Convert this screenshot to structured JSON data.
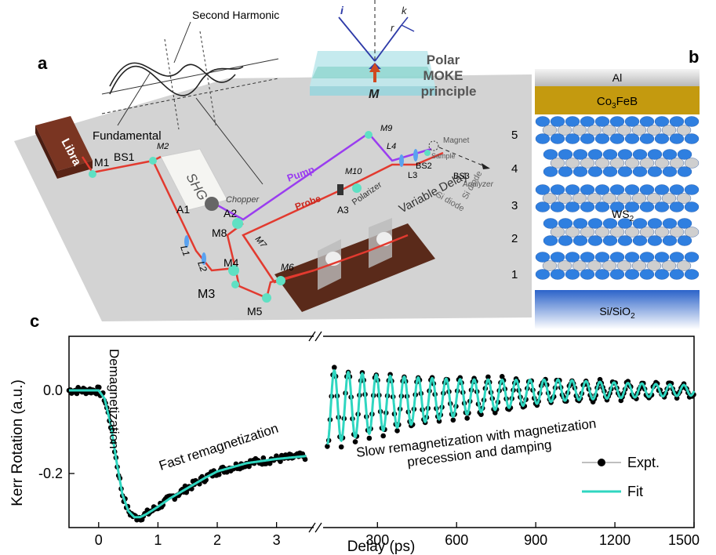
{
  "panels": {
    "a": "a",
    "b": "b",
    "c": "c"
  },
  "setup": {
    "libra": "Libra",
    "shg": "SHG",
    "chopper": "Chopper",
    "fundamental": "Fundamental",
    "second_harmonic": "Second Harmonic",
    "pump": "Pump",
    "probe": "Probe",
    "variable_delay": "Variable Delay",
    "polarizer": "Polarizer",
    "analyzer": "Analyzer",
    "magnet": "Magnet",
    "sample": "Sample",
    "si_diode_1": "Si diode",
    "si_diode_2": "Si diode",
    "optics": {
      "M1": "M1",
      "BS1": "BS1",
      "M2": "M2",
      "A1": "A1",
      "L1": "L1",
      "L2": "L2",
      "M3": "M3",
      "M4": "M4",
      "M5": "M5",
      "M6": "M6",
      "M7": "M7",
      "M8": "M8",
      "A2": "A2",
      "A3": "A3",
      "M9": "M9",
      "M10": "M10",
      "L3": "L3",
      "L4": "L4",
      "BS2": "BS2",
      "BS3": "BS3"
    },
    "moke": {
      "title_line1": "Polar",
      "title_line2": "MOKE",
      "title_line3": "principle",
      "i": "i",
      "r": "r",
      "k": "k",
      "M": "M"
    }
  },
  "stack": {
    "al": "Al",
    "cofeb": "Co3FeB",
    "ws2": "WS2",
    "substrate": "Si/SiO2",
    "layer_numbers": [
      "5",
      "4",
      "3",
      "2",
      "1"
    ],
    "colors": {
      "al": "#c9c9c9",
      "cofeb": "#c49a0f",
      "substrate": "#3a6fcc",
      "tungsten": "#2f7fe0",
      "sulfur": "#cfcfcf"
    }
  },
  "chart_data": {
    "type": "line",
    "xlabel": "Delay (ps)",
    "ylabel": "Kerr Rotation (a.u.)",
    "ylim": [
      -0.33,
      0.13
    ],
    "yticks": [
      0.0,
      -0.2
    ],
    "yticklabels": [
      "0.0",
      "-0.2"
    ],
    "left_segment": {
      "xlim": [
        -0.5,
        3.6
      ],
      "xticks": [
        0,
        1,
        2,
        3
      ],
      "xticklabels": [
        "0",
        "1",
        "2",
        "3"
      ]
    },
    "right_segment": {
      "xlim": [
        100,
        1500
      ],
      "xticks": [
        300,
        600,
        900,
        1200,
        1500
      ],
      "xticklabels": [
        "300",
        "600",
        "900",
        "1200",
        "1500"
      ]
    },
    "legend": {
      "placement": "bottom-right",
      "entries": [
        "Expt.",
        "Fit"
      ]
    },
    "annotations": {
      "demag": "Demagnetization",
      "fast": "Fast remagnetization",
      "slow_line1": "Slow remagnetization with magnetization",
      "slow_line2": "precession and damping"
    },
    "series": [
      {
        "name": "Expt.",
        "color": "#000000",
        "style": "points"
      },
      {
        "name": "Fit",
        "color": "#2fd6c0",
        "style": "line"
      }
    ],
    "fast_fit": {
      "x": [
        -0.5,
        0.0,
        0.1,
        0.2,
        0.3,
        0.4,
        0.5,
        0.6,
        0.7,
        0.8,
        1.0,
        1.2,
        1.5,
        1.8,
        2.0,
        2.5,
        3.0,
        3.5
      ],
      "y": [
        0.0,
        0.0,
        -0.02,
        -0.08,
        -0.17,
        -0.25,
        -0.29,
        -0.305,
        -0.305,
        -0.298,
        -0.28,
        -0.26,
        -0.235,
        -0.21,
        -0.195,
        -0.175,
        -0.165,
        -0.158
      ]
    },
    "slow_fit": {
      "period_ps": 53,
      "damping_tau_ps": 700,
      "initial_amplitude": 0.09,
      "baseline_start": -0.04,
      "baseline_end": 0.0,
      "x_start": 110,
      "x_end": 1500
    }
  }
}
